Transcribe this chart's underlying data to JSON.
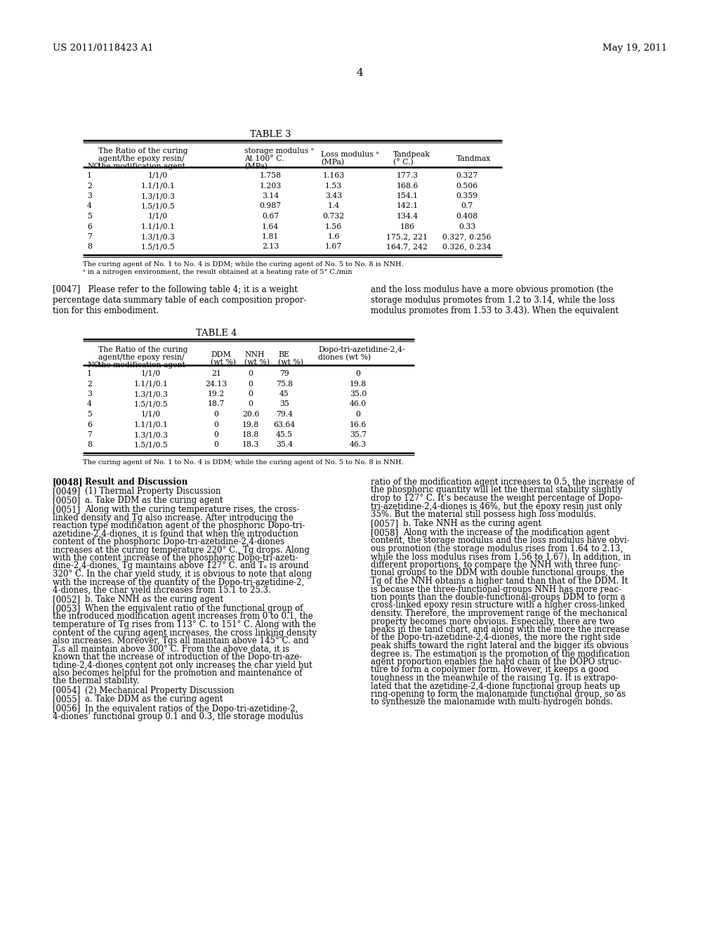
{
  "header_left": "US 2011/0118423 A1",
  "header_right": "May 19, 2011",
  "page_number": "4",
  "background_color": "#ffffff",
  "text_color": "#000000",
  "table3_title": "TABLE 3",
  "table3_footnote1": "The curing agent of No. 1 to No. 4 is DDM; while the curing agent of No. 5 to No. 8 is NNH.",
  "table3_footnote2": "ᵃ in a nitrogen environment, the result obtained at a heating rate of 5° C./min",
  "table3_rows": [
    [
      "1",
      "1/1/0",
      "1.758",
      "1.163",
      "177.3",
      "0.327"
    ],
    [
      "2",
      "1.1/1/0.1",
      "1.203",
      "1.53",
      "168.6",
      "0.506"
    ],
    [
      "3",
      "1.3/1/0.3",
      "3.14",
      "3.43",
      "154.1",
      "0.359"
    ],
    [
      "4",
      "1.5/1/0.5",
      "0.987",
      "1.4",
      "142.1",
      "0.7"
    ],
    [
      "5",
      "1/1/0",
      "0.67",
      "0.732",
      "134.4",
      "0.408"
    ],
    [
      "6",
      "1.1/1/0.1",
      "1.64",
      "1.56",
      "186",
      "0.33"
    ],
    [
      "7",
      "1.3/1/0.3",
      "1.81",
      "1.6",
      "175.2, 221",
      "0.327, 0.256"
    ],
    [
      "8",
      "1.5/1/0.5",
      "2.13",
      "1.67",
      "164.7, 242",
      "0.326, 0.234"
    ]
  ],
  "para_0047_left": "[0047]   Please refer to the following table 4; it is a weight\npercentage data summary table of each composition propor-\ntion for this embodiment.",
  "para_0047_right": "and the loss modulus have a more obvious promotion (the\nstorage modulus promotes from 1.2 to 3.14, while the loss\nmodulus promotes from 1.53 to 3.43). When the equivalent",
  "table4_title": "TABLE 4",
  "table4_rows": [
    [
      "1",
      "1/1/0",
      "21",
      "0",
      "79",
      "0"
    ],
    [
      "2",
      "1.1/1/0.1",
      "24.13",
      "0",
      "75.8",
      "19.8"
    ],
    [
      "3",
      "1.3/1/0.3",
      "19.2",
      "0",
      "45",
      "35.0"
    ],
    [
      "4",
      "1.5/1/0.5",
      "18.7",
      "0",
      "35",
      "46.0"
    ],
    [
      "5",
      "1/1/0",
      "0",
      "20.6",
      "79.4",
      "0"
    ],
    [
      "6",
      "1.1/1/0.1",
      "0",
      "19.8",
      "63.64",
      "16.6"
    ],
    [
      "7",
      "1.3/1/0.3",
      "0",
      "18.8",
      "45.5",
      "35.7"
    ],
    [
      "8",
      "1.5/1/0.5",
      "0",
      "18.3",
      "35.4",
      "46.3"
    ]
  ],
  "table4_footnote": "The curing agent of No. 1 to No. 4 is DDM; while the curing agent of No. 5 to No. 8 is NNH.",
  "left_col_paras": [
    {
      "tag": "[0048]",
      "bold_tag": true,
      "bold_text": true,
      "text": "Result and Discussion"
    },
    {
      "tag": "[0049]",
      "bold_tag": false,
      "bold_text": false,
      "text": "(1) Thermal Property Discussion"
    },
    {
      "tag": "[0050]",
      "bold_tag": false,
      "bold_text": false,
      "text": "a. Take DDM as the curing agent"
    },
    {
      "tag": "[0051]",
      "bold_tag": false,
      "bold_text": false,
      "text": "Along with the curing temperature rises, the cross-\nlinked density and Tg also increase. After introducing the\nreaction type modification agent of the phosphoric Dopo-tri-\nazetidine-2,4-diones, it is found that when the introduction\ncontent of the phosphoric Dopo-tri-azetidine-2,4-diones\nincreases at the curing temperature 220° C., Tg drops. Along\nwith the content increase of the phosphoric Dopo-tri-azeti-\ndine-2,4-diones, Tg maintains above 127° C. and Tₐ is around\n320° C. In the char yield study, it is obvious to note that along\nwith the increase of the quantity of the Dopo-tri-azetidine-2,\n4-diones, the char yield increases from 15.1 to 25.3."
    },
    {
      "tag": "[0052]",
      "bold_tag": false,
      "bold_text": false,
      "text": "b. Take NNH as the curing agent"
    },
    {
      "tag": "[0053]",
      "bold_tag": false,
      "bold_text": false,
      "text": "When the equivalent ratio of the functional group of\nthe introduced modification agent increases from 0 to 0.1, the\ntemperature of Tg rises from 113° C. to 151° C. Along with the\ncontent of the curing agent increases, the cross linking density\nalso increases. Moreover, Tgs all maintain above 145° C. and\nTₐs all maintain above 300° C. From the above data, it is\nknown that the increase of introduction of the Dopo-tri-aze-\ntidine-2,4-diones content not only increases the char yield but\nalso becomes helpful for the promotion and maintenance of\nthe thermal stability."
    },
    {
      "tag": "[0054]",
      "bold_tag": false,
      "bold_text": false,
      "text": "(2) Mechanical Property Discussion"
    },
    {
      "tag": "[0055]",
      "bold_tag": false,
      "bold_text": false,
      "text": "a. Take DDM as the curing agent"
    },
    {
      "tag": "[0056]",
      "bold_tag": false,
      "bold_text": false,
      "text": "In the equivalent ratios of the Dopo-tri-azetidine-2,\n4-diones’ functional group 0.1 and 0.3, the storage modulus"
    }
  ],
  "right_col_paras": [
    {
      "tag": "",
      "bold_tag": false,
      "bold_text": false,
      "text": "ratio of the modification agent increases to 0.5, the increase of\nthe phosphoric quantity will let the thermal stability slightly\ndrop to 127° C. It’s because the weight percentage of Dopo-\ntri-azetidine-2,4-diones is 46%, but the epoxy resin just only\n35%. But the material still possess high loss modulus."
    },
    {
      "tag": "[0057]",
      "bold_tag": false,
      "bold_text": false,
      "text": "b. Take NNH as the curing agent"
    },
    {
      "tag": "[0058]",
      "bold_tag": false,
      "bold_text": false,
      "text": "Along with the increase of the modification agent\ncontent, the storage modulus and the loss modulus have obvi-\nous promotion (the storage modulus rises from 1.64 to 2.13,\nwhile the loss modulus rises from 1.56 to 1.67). In addition, in\ndifferent proportions, to compare the NNH with three func-\ntional groups to the DDM with double functional groups, the\nTg of the NNH obtains a higher tand than that of the DDM. It\nis because the three-functional-groups NNH has more reac-\ntion points than the double-functional-groups DDM to form a\ncross-linked epoxy resin structure with a higher cross-linked\ndensity. Therefore, the improvement range of the mechanical\nproperty becomes more obvious. Especially, there are two\npeaks in the tand chart, and along with the more the increase\nof the Dopo-tri-azetidine-2,4-diones, the more the right side\npeak shifts toward the right lateral and the bigger its obvious\ndegree is. The estimation is the promotion of the modification\nagent proportion enables the hard chain of the DOPO struc-\nture to form a copolymer form. However, it keeps a good\ntoughness in the meanwhile of the raising Tg. It is extrapo-\nlated that the azetidine-2,4-dione functional group heats up\nring-opening to form the malonamide functional group, so as\nto synthesize the malonamide with multi-hydrogen bonds."
    }
  ]
}
